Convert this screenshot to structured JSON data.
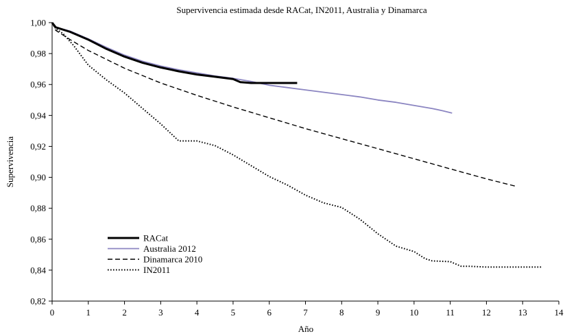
{
  "chart_data": {
    "type": "line",
    "title": "Supervivencia estimada desde RACat, IN2011, Australia y Dinamarca",
    "xlabel": "Año",
    "ylabel": "Supervivencia",
    "xlim": [
      0,
      14
    ],
    "ylim": [
      0.82,
      1.0
    ],
    "x_ticks": [
      "0",
      "1",
      "2",
      "3",
      "4",
      "5",
      "6",
      "7",
      "8",
      "9",
      "10",
      "11",
      "12",
      "13",
      "14"
    ],
    "y_ticks": [
      "0,82",
      "0,84",
      "0,86",
      "0,88",
      "0,90",
      "0,92",
      "0,94",
      "0,96",
      "0,98",
      "1,00"
    ],
    "grid": false,
    "legend_position": "bottom-left",
    "series": [
      {
        "name": "RACat",
        "color": "#000000",
        "style": "solid-thick",
        "x": [
          0,
          0.1,
          0.5,
          1.0,
          1.5,
          2.0,
          2.5,
          3.0,
          3.5,
          4.0,
          4.5,
          5.0,
          5.2,
          5.5,
          6.0,
          6.5,
          6.77
        ],
        "y": [
          1.0,
          0.997,
          0.994,
          0.989,
          0.983,
          0.978,
          0.974,
          0.971,
          0.9685,
          0.9665,
          0.965,
          0.9635,
          0.9615,
          0.961,
          0.961,
          0.961,
          0.961
        ]
      },
      {
        "name": "Australia 2012",
        "color": "#8b85c1",
        "style": "solid",
        "x": [
          0,
          0.1,
          0.5,
          1.0,
          1.5,
          2.0,
          2.5,
          3.0,
          3.5,
          4.0,
          4.5,
          5.0,
          5.5,
          6.0,
          6.5,
          7.0,
          7.5,
          8.0,
          8.5,
          9.0,
          9.5,
          10.0,
          10.5,
          10.8,
          11.05
        ],
        "y": [
          1.0,
          0.997,
          0.9945,
          0.9895,
          0.984,
          0.979,
          0.975,
          0.972,
          0.9695,
          0.9675,
          0.9655,
          0.964,
          0.962,
          0.9595,
          0.958,
          0.9565,
          0.955,
          0.9535,
          0.952,
          0.95,
          0.9485,
          0.9465,
          0.9445,
          0.943,
          0.9415
        ]
      },
      {
        "name": "Dinamarca 2010",
        "color": "#000000",
        "style": "dashed",
        "x": [
          0,
          0.1,
          0.5,
          1.0,
          2.0,
          3.0,
          4.0,
          5.0,
          6.0,
          7.0,
          8.0,
          9.0,
          10.0,
          11.0,
          12.0,
          12.85
        ],
        "y": [
          1.0,
          0.995,
          0.989,
          0.982,
          0.9705,
          0.961,
          0.953,
          0.9455,
          0.9385,
          0.9315,
          0.925,
          0.9185,
          0.912,
          0.9055,
          0.899,
          0.894
        ]
      },
      {
        "name": "IN2011",
        "color": "#000000",
        "style": "dotted",
        "x": [
          0,
          0.1,
          0.3,
          0.6,
          1.0,
          1.5,
          2.0,
          2.5,
          3.0,
          3.5,
          4.0,
          4.5,
          5.0,
          5.5,
          6.0,
          6.5,
          7.0,
          7.5,
          8.0,
          8.5,
          9.0,
          9.5,
          10.0,
          10.3,
          10.5,
          11.0,
          11.3,
          11.5,
          12.0,
          12.5,
          13.0,
          13.55
        ],
        "y": [
          1.0,
          0.996,
          0.993,
          0.985,
          0.9725,
          0.963,
          0.9545,
          0.9445,
          0.9345,
          0.9235,
          0.9235,
          0.9205,
          0.9145,
          0.9075,
          0.9005,
          0.895,
          0.8885,
          0.8835,
          0.8805,
          0.873,
          0.8635,
          0.8555,
          0.852,
          0.8475,
          0.846,
          0.8455,
          0.8425,
          0.8425,
          0.842,
          0.842,
          0.842,
          0.842
        ]
      }
    ]
  }
}
